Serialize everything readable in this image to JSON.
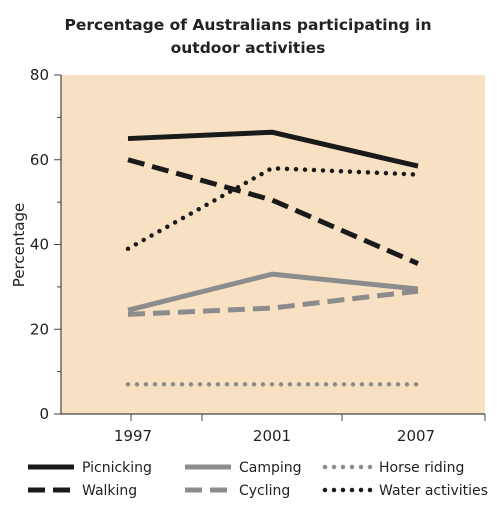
{
  "chart_data": {
    "type": "line",
    "title_lines": [
      "Percentage of Australians participating in",
      "outdoor activities"
    ],
    "ylabel": "Percentage",
    "xlabel": "",
    "categories": [
      "1997",
      "2001",
      "2007"
    ],
    "ylim": [
      0,
      80
    ],
    "yticks": [
      "0",
      "20",
      "40",
      "60",
      "80"
    ],
    "background_color": "#f8e1c2",
    "grid": false,
    "legend_position": "bottom",
    "series": [
      {
        "name": "Picnicking",
        "values": [
          65,
          66.5,
          58.5
        ],
        "color": "#1a1a1a",
        "style": "solid"
      },
      {
        "name": "Camping",
        "values": [
          24.5,
          33,
          29.5
        ],
        "color": "#8c8c8c",
        "style": "solid"
      },
      {
        "name": "Horse riding",
        "values": [
          7,
          7,
          7
        ],
        "color": "#8c8c8c",
        "style": "dotted"
      },
      {
        "name": "Walking",
        "values": [
          60,
          50.5,
          35.5
        ],
        "color": "#1a1a1a",
        "style": "dashed"
      },
      {
        "name": "Cycling",
        "values": [
          23.5,
          25,
          29
        ],
        "color": "#8c8c8c",
        "style": "dashed"
      },
      {
        "name": "Water activities",
        "values": [
          39,
          58,
          56.5
        ],
        "color": "#1a1a1a",
        "style": "dotted"
      }
    ]
  }
}
